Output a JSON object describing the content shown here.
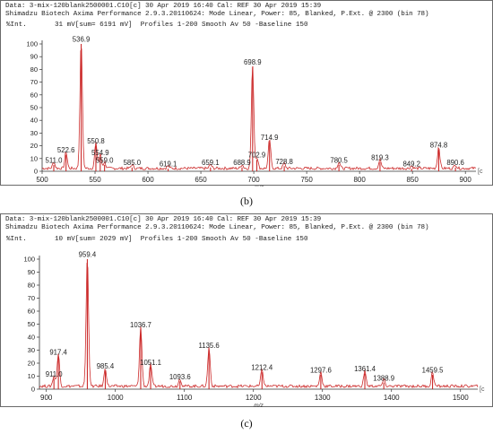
{
  "panels": [
    {
      "caption": "(b)",
      "header_line1": "Data: 3-mix-120blank2500001.C10[c] 30 Apr 2019 16:40 Cal: REF 30 Apr 2019 15:39",
      "header_line2": "Shimadzu Biotech Axima Performance 2.9.3.20110624: Mode Linear, Power: 85, Blanked, P.Ext. @ 2300 (bin 78)",
      "intensity_label": "%Int.",
      "signal_info": "31 mV[sum= 6191 mV]  Profiles 1-200 Smooth Av 50 -Baseline 150"
    },
    {
      "caption": "(c)",
      "header_line1": "Data: 3-mix-120blank2500001.C10[c] 30 Apr 2019 16:40 Cal: REF 30 Apr 2019 15:39",
      "header_line2": "Shimadzu Biotech Axima Performance 2.9.3.20110624: Mode Linear, Power: 85, Blanked, P.Ext. @ 2300 (bin 78)",
      "intensity_label": "%Int.",
      "signal_info": "10 mV[sum= 2029 mV]  Profiles 1-200 Smooth Av 50 -Baseline 150"
    }
  ],
  "chart_data": [
    {
      "type": "line",
      "title": "",
      "xlabel": "m/z",
      "ylabel": "%Int.",
      "xlim": [
        500,
        910
      ],
      "ylim": [
        0,
        100
      ],
      "x_ticks": [
        500,
        550,
        600,
        650,
        700,
        750,
        800,
        850,
        900
      ],
      "y_ticks": [
        0,
        10,
        20,
        30,
        40,
        50,
        60,
        70,
        80,
        90,
        100
      ],
      "line_color": "#cc2a2a",
      "peaks": [
        {
          "mz": 511.0,
          "intensity": 5,
          "label": "511.0"
        },
        {
          "mz": 522.6,
          "intensity": 13,
          "label": "522.6"
        },
        {
          "mz": 536.9,
          "intensity": 100,
          "label": "536.9"
        },
        {
          "mz": 550.8,
          "intensity": 20,
          "label": "550.8"
        },
        {
          "mz": 554.9,
          "intensity": 11,
          "label": "554.9"
        },
        {
          "mz": 559.0,
          "intensity": 5,
          "label": "559.0"
        },
        {
          "mz": 585.0,
          "intensity": 3,
          "label": "585.0"
        },
        {
          "mz": 619.1,
          "intensity": 2,
          "label": "619.1"
        },
        {
          "mz": 659.1,
          "intensity": 3,
          "label": "659.1"
        },
        {
          "mz": 688.9,
          "intensity": 3,
          "label": "688.9"
        },
        {
          "mz": 698.9,
          "intensity": 82,
          "label": "698.9"
        },
        {
          "mz": 702.9,
          "intensity": 9,
          "label": "702.9"
        },
        {
          "mz": 714.9,
          "intensity": 23,
          "label": "714.9"
        },
        {
          "mz": 728.8,
          "intensity": 4,
          "label": "728.8"
        },
        {
          "mz": 780.5,
          "intensity": 5,
          "label": "780.5"
        },
        {
          "mz": 819.3,
          "intensity": 7,
          "label": "819.3"
        },
        {
          "mz": 849.2,
          "intensity": 2,
          "label": "849.2"
        },
        {
          "mz": 874.8,
          "intensity": 17,
          "label": "874.8"
        },
        {
          "mz": 890.6,
          "intensity": 3,
          "label": "890.6"
        }
      ]
    },
    {
      "type": "line",
      "title": "",
      "xlabel": "m/z",
      "ylabel": "%Int.",
      "xlim": [
        890,
        1525
      ],
      "ylim": [
        0,
        100
      ],
      "x_ticks": [
        900,
        1000,
        1100,
        1200,
        1300,
        1400,
        1500
      ],
      "y_ticks": [
        0,
        10,
        20,
        30,
        40,
        50,
        60,
        70,
        80,
        90,
        100
      ],
      "line_color": "#cc2a2a",
      "peaks": [
        {
          "mz": 911.0,
          "intensity": 8,
          "label": "911.0"
        },
        {
          "mz": 917.4,
          "intensity": 25,
          "label": "917.4"
        },
        {
          "mz": 959.4,
          "intensity": 100,
          "label": "959.4"
        },
        {
          "mz": 985.4,
          "intensity": 14,
          "label": "985.4"
        },
        {
          "mz": 1036.7,
          "intensity": 46,
          "label": "1036.7"
        },
        {
          "mz": 1051.1,
          "intensity": 17,
          "label": "1051.1"
        },
        {
          "mz": 1093.6,
          "intensity": 6,
          "label": "1093.6"
        },
        {
          "mz": 1135.6,
          "intensity": 30,
          "label": "1135.6"
        },
        {
          "mz": 1212.4,
          "intensity": 13,
          "label": "1212.4"
        },
        {
          "mz": 1297.6,
          "intensity": 11,
          "label": "1297.6"
        },
        {
          "mz": 1361.4,
          "intensity": 12,
          "label": "1361.4"
        },
        {
          "mz": 1388.9,
          "intensity": 5,
          "label": "1388.9"
        },
        {
          "mz": 1459.5,
          "intensity": 11,
          "label": "1459.5"
        }
      ]
    }
  ]
}
